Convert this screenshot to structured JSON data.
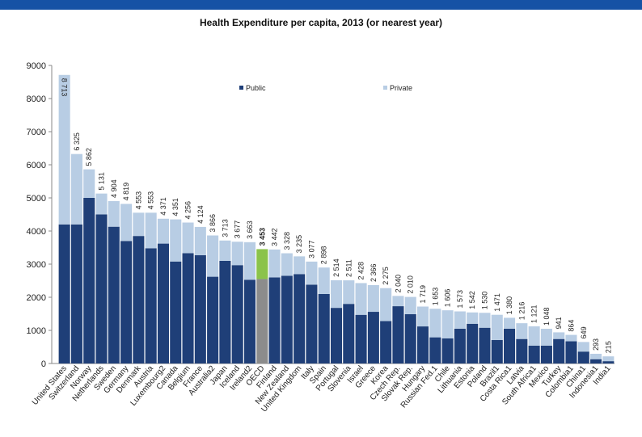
{
  "header": {
    "band_color": "#1652a5"
  },
  "chart_data": {
    "type": "bar",
    "stacked": true,
    "title": "Health Expenditure per capita, 2013 (or nearest year)",
    "xlabel": "",
    "ylabel": "",
    "ylim": [
      0,
      9000
    ],
    "yticks": [
      "0",
      "1000",
      "2000",
      "3000",
      "4000",
      "5000",
      "6000",
      "7000",
      "8000",
      "9000"
    ],
    "grid": false,
    "legend_position": "top-center",
    "highlight_category": "OECD",
    "highlight_colors": {
      "Public": "#8c8c8c",
      "Private": "#8bc34a"
    },
    "categories": [
      "United States",
      "Switzerland",
      "Norway",
      "Netherlands",
      "Sweden",
      "Germany",
      "Denmark",
      "Austria",
      "Luxembourg2",
      "Canada",
      "Belgium",
      "France",
      "Australia2",
      "Japan",
      "Iceland",
      "Ireland2",
      "OECD",
      "Finland",
      "New Zealand",
      "United Kingdom",
      "Italy",
      "Spain",
      "Portugal",
      "Slovenia",
      "Israel",
      "Greece",
      "Korea",
      "Czech Rep.",
      "Slovak Rep.",
      "Hungary",
      "Russian Fed.1",
      "Chile",
      "Lithuania",
      "Estonia",
      "Poland",
      "Brazil1",
      "Costa Rica1",
      "Latvia",
      "South Africa1",
      "Mexico",
      "Turkey",
      "Colombia1",
      "China1",
      "Indonesia1",
      "India1"
    ],
    "totals": [
      8713,
      6325,
      5862,
      5131,
      4904,
      4819,
      4553,
      4553,
      4371,
      4351,
      4256,
      4124,
      3866,
      3713,
      3677,
      3663,
      3453,
      3442,
      3328,
      3235,
      3077,
      2898,
      2514,
      2511,
      2428,
      2366,
      2275,
      2040,
      2010,
      1719,
      1653,
      1606,
      1573,
      1542,
      1530,
      1471,
      1380,
      1216,
      1121,
      1048,
      941,
      864,
      649,
      293,
      215
    ],
    "total_labels": [
      "8 713",
      "6 325",
      "5 862",
      "5 131",
      "4 904",
      "4 819",
      "4 553",
      "4 553",
      "4 371",
      "4 351",
      "4 256",
      "4 124",
      "3 866",
      "3 713",
      "3 677",
      "3 663",
      "3 453",
      "3 442",
      "3 328",
      "3 235",
      "3 077",
      "2 898",
      "2 514",
      "2 511",
      "2 428",
      "2 366",
      "2 275",
      "2 040",
      "2 010",
      "1 719",
      "1 653",
      "1 606",
      "1 573",
      "1 542",
      "1 530",
      "1 471",
      "1 380",
      "1 216",
      "1 121",
      "1 048",
      "941",
      "864",
      "649",
      "293",
      "215"
    ],
    "series": [
      {
        "name": "Public",
        "color": "#1f3f78",
        "values": [
          4200,
          4200,
          5000,
          4500,
          4130,
          3700,
          3850,
          3480,
          3620,
          3080,
          3330,
          3270,
          2620,
          3100,
          2970,
          2530,
          2550,
          2600,
          2650,
          2700,
          2380,
          2100,
          1680,
          1800,
          1470,
          1560,
          1280,
          1730,
          1490,
          1120,
          790,
          760,
          1050,
          1200,
          1080,
          710,
          1050,
          740,
          540,
          540,
          740,
          670,
          360,
          130,
          70
        ]
      },
      {
        "name": "Private",
        "color": "#b8cde4",
        "values": [
          4513,
          2125,
          862,
          631,
          774,
          1119,
          703,
          1073,
          751,
          1271,
          926,
          854,
          1246,
          613,
          707,
          1133,
          903,
          842,
          678,
          535,
          697,
          798,
          834,
          711,
          958,
          806,
          995,
          310,
          520,
          599,
          863,
          846,
          523,
          342,
          450,
          761,
          330,
          476,
          581,
          508,
          201,
          194,
          289,
          163,
          145
        ]
      }
    ]
  }
}
